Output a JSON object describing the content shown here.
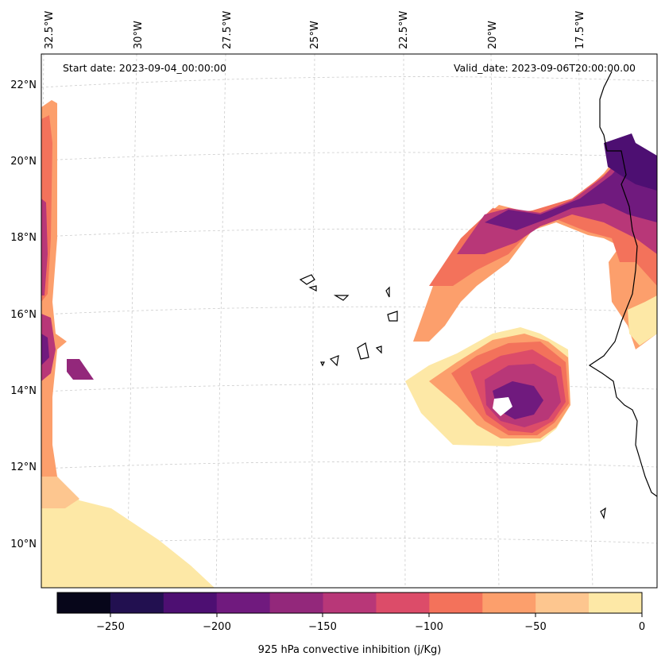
{
  "map": {
    "start_label": "Start date: 2023-09-04_00:00:00",
    "valid_label": "Valid_date: 2023-09-06T20:00:00.00",
    "lon_labels": [
      "32.5°W",
      "30°W",
      "27.5°W",
      "25°W",
      "22.5°W",
      "20°W",
      "17.5°W"
    ],
    "lat_labels": [
      "22°N",
      "20°N",
      "18°N",
      "16°N",
      "14°N",
      "12°N",
      "10°N"
    ]
  },
  "colorbar": {
    "label": "925 hPa convective inhibition (j/Kg)",
    "ticks": [
      "−250",
      "−200",
      "−150",
      "−100",
      "−50",
      "0"
    ],
    "colors": [
      "#07061a",
      "#221050",
      "#4d0f72",
      "#701a7e",
      "#93287b",
      "#b83778",
      "#dc4c69",
      "#f3725b",
      "#fc9f6c",
      "#fdc68f",
      "#fde8a6"
    ]
  },
  "colors": {
    "coast": "#000000",
    "grid": "#cccccc"
  }
}
